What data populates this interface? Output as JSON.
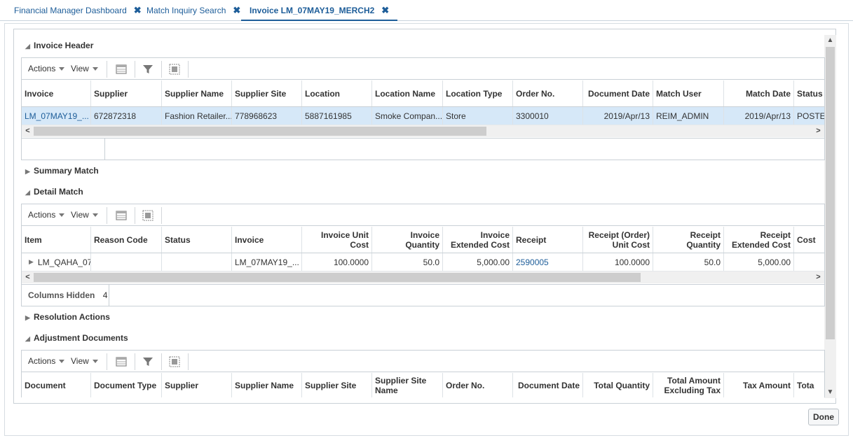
{
  "tabs": [
    {
      "label": "Financial Manager Dashboard"
    },
    {
      "label": "Match Inquiry Search"
    },
    {
      "label": "Invoice LM_07MAY19_MERCH2"
    }
  ],
  "toolbar": {
    "actions": "Actions",
    "view": "View"
  },
  "invoice_header": {
    "title": "Invoice Header",
    "columns": [
      "Invoice",
      "Supplier",
      "Supplier Name",
      "Supplier Site",
      "Location",
      "Location Name",
      "Location Type",
      "Order No.",
      "Document Date",
      "Match User",
      "Match Date",
      "Status"
    ],
    "row": [
      "LM_07MAY19_...",
      "672872318",
      "Fashion Retailer...",
      "778968623",
      "5887161985",
      "Smoke Compan...",
      "Store",
      "3300010",
      "2019/Apr/13",
      "REIM_ADMIN",
      "2019/Apr/13",
      "POSTED"
    ]
  },
  "summary_match": {
    "title": "Summary Match"
  },
  "detail_match": {
    "title": "Detail Match",
    "columns": [
      "Item",
      "Reason Code",
      "Status",
      "Invoice",
      "Invoice Unit Cost",
      "Invoice Quantity",
      "Invoice Extended Cost",
      "Receipt",
      "Receipt (Order) Unit Cost",
      "Receipt Quantity",
      "Receipt Extended Cost",
      "Cost"
    ],
    "row": [
      "LM_QAHA_07",
      "",
      "",
      "LM_07MAY19_...",
      "100.0000",
      "50.0",
      "5,000.00",
      "2590005",
      "100.0000",
      "50.0",
      "5,000.00",
      ""
    ],
    "columns_hidden_label": "Columns Hidden",
    "columns_hidden_count": "4"
  },
  "resolution_actions": {
    "title": "Resolution Actions"
  },
  "adjustment_documents": {
    "title": "Adjustment Documents",
    "columns": [
      "Document",
      "Document Type",
      "Supplier",
      "Supplier Name",
      "Supplier Site",
      "Supplier Site Name",
      "Order No.",
      "Document Date",
      "Total Quantity",
      "Total Amount Excluding Tax",
      "Tax Amount",
      "Tota"
    ]
  },
  "done_label": "Done",
  "colors": {
    "link": "#1d5d99",
    "selected_row": "#d6e8f8"
  }
}
